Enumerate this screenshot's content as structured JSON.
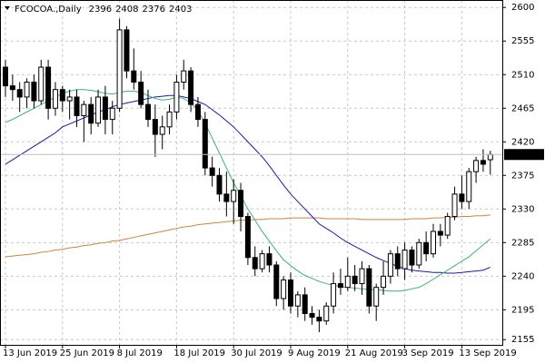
{
  "chart_data": {
    "type": "candlestick",
    "title": "FCOCOA.,Daily",
    "categories": [
      "13 Jun 2019",
      null,
      null,
      null,
      null,
      null,
      null,
      null,
      "25 Jun 2019",
      null,
      null,
      null,
      null,
      null,
      null,
      null,
      "8 Jul 2019",
      null,
      null,
      null,
      null,
      null,
      null,
      null,
      "18 Jul 2019",
      null,
      null,
      null,
      null,
      null,
      null,
      null,
      "30 Jul 2019",
      null,
      null,
      null,
      null,
      null,
      null,
      null,
      "9 Aug 2019",
      null,
      null,
      null,
      null,
      null,
      null,
      null,
      "21 Aug 2019",
      null,
      null,
      null,
      null,
      null,
      null,
      null,
      "3 Sep 2019",
      null,
      null,
      null,
      null,
      null,
      null,
      null,
      "13 Sep 2019",
      null,
      null,
      null,
      null
    ],
    "ohlc": [
      [
        2520,
        2530,
        2480,
        2495
      ],
      [
        2495,
        2510,
        2475,
        2490
      ],
      [
        2490,
        2500,
        2460,
        2480
      ],
      [
        2480,
        2505,
        2465,
        2500
      ],
      [
        2500,
        2510,
        2465,
        2475
      ],
      [
        2475,
        2530,
        2470,
        2520
      ],
      [
        2520,
        2530,
        2450,
        2465
      ],
      [
        2465,
        2500,
        2455,
        2490
      ],
      [
        2490,
        2495,
        2460,
        2475
      ],
      [
        2475,
        2490,
        2450,
        2480
      ],
      [
        2480,
        2490,
        2440,
        2455
      ],
      [
        2455,
        2475,
        2420,
        2470
      ],
      [
        2470,
        2480,
        2430,
        2445
      ],
      [
        2445,
        2490,
        2440,
        2480
      ],
      [
        2480,
        2495,
        2430,
        2450
      ],
      [
        2450,
        2475,
        2430,
        2465
      ],
      [
        2465,
        2585,
        2460,
        2570
      ],
      [
        2570,
        2575,
        2505,
        2515
      ],
      [
        2515,
        2545,
        2490,
        2500
      ],
      [
        2500,
        2515,
        2465,
        2470
      ],
      [
        2470,
        2490,
        2440,
        2450
      ],
      [
        2450,
        2470,
        2400,
        2430
      ],
      [
        2430,
        2455,
        2410,
        2440
      ],
      [
        2440,
        2470,
        2430,
        2460
      ],
      [
        2460,
        2510,
        2450,
        2500
      ],
      [
        2500,
        2530,
        2490,
        2515
      ],
      [
        2515,
        2520,
        2460,
        2470
      ],
      [
        2470,
        2480,
        2440,
        2450
      ],
      [
        2450,
        2460,
        2375,
        2385
      ],
      [
        2385,
        2400,
        2360,
        2375
      ],
      [
        2375,
        2385,
        2340,
        2350
      ],
      [
        2350,
        2380,
        2320,
        2340
      ],
      [
        2340,
        2370,
        2310,
        2355
      ],
      [
        2355,
        2365,
        2300,
        2320
      ],
      [
        2320,
        2325,
        2255,
        2265
      ],
      [
        2265,
        2280,
        2240,
        2250
      ],
      [
        2250,
        2275,
        2245,
        2270
      ],
      [
        2270,
        2280,
        2245,
        2255
      ],
      [
        2255,
        2260,
        2200,
        2210
      ],
      [
        2210,
        2240,
        2195,
        2235
      ],
      [
        2235,
        2245,
        2190,
        2200
      ],
      [
        2200,
        2220,
        2185,
        2215
      ],
      [
        2215,
        2225,
        2180,
        2190
      ],
      [
        2190,
        2200,
        2175,
        2185
      ],
      [
        2185,
        2195,
        2165,
        2180
      ],
      [
        2180,
        2205,
        2175,
        2200
      ],
      [
        2200,
        2245,
        2190,
        2230
      ],
      [
        2230,
        2250,
        2215,
        2225
      ],
      [
        2225,
        2265,
        2220,
        2240
      ],
      [
        2240,
        2255,
        2220,
        2230
      ],
      [
        2230,
        2260,
        2215,
        2250
      ],
      [
        2250,
        2255,
        2190,
        2200
      ],
      [
        2200,
        2230,
        2180,
        2225
      ],
      [
        2225,
        2260,
        2215,
        2240
      ],
      [
        2240,
        2275,
        2230,
        2270
      ],
      [
        2270,
        2280,
        2240,
        2250
      ],
      [
        2250,
        2285,
        2235,
        2275
      ],
      [
        2275,
        2280,
        2245,
        2255
      ],
      [
        2255,
        2290,
        2250,
        2285
      ],
      [
        2285,
        2300,
        2260,
        2270
      ],
      [
        2270,
        2310,
        2265,
        2300
      ],
      [
        2300,
        2310,
        2280,
        2295
      ],
      [
        2295,
        2325,
        2290,
        2320
      ],
      [
        2320,
        2360,
        2315,
        2350
      ],
      [
        2350,
        2375,
        2330,
        2340
      ],
      [
        2340,
        2385,
        2330,
        2380
      ],
      [
        2380,
        2400,
        2365,
        2395
      ],
      [
        2395,
        2410,
        2380,
        2390
      ],
      [
        2396,
        2408,
        2376,
        2403
      ]
    ],
    "lines": [
      {
        "color": "#cd853f",
        "values": [
          2266,
          2267,
          2268,
          2269,
          2270,
          2272,
          2273,
          2275,
          2276,
          2278,
          2279,
          2281,
          2282,
          2284,
          2285,
          2287,
          2288,
          2290,
          2292,
          2294,
          2296,
          2298,
          2300,
          2302,
          2304,
          2306,
          2307,
          2309,
          2310,
          2311,
          2312,
          2313,
          2314,
          2315,
          2315,
          2316,
          2316,
          2317,
          2317,
          2317,
          2318,
          2318,
          2318,
          2318,
          2318,
          2317,
          2317,
          2317,
          2317,
          2317,
          2316,
          2316,
          2316,
          2316,
          2316,
          2316,
          2316,
          2317,
          2317,
          2317,
          2318,
          2318,
          2319,
          2319,
          2320,
          2320,
          2321,
          2321,
          2322
        ]
      },
      {
        "color": "#1a1aa6",
        "values": [
          2390,
          2396,
          2402,
          2408,
          2414,
          2420,
          2426,
          2432,
          2440,
          2444,
          2448,
          2452,
          2456,
          2460,
          2463,
          2467,
          2470,
          2472,
          2474,
          2476,
          2478,
          2480,
          2481,
          2482,
          2482,
          2480,
          2478,
          2474,
          2470,
          2463,
          2456,
          2448,
          2440,
          2430,
          2420,
          2410,
          2400,
          2388,
          2375,
          2362,
          2350,
          2340,
          2330,
          2320,
          2310,
          2304,
          2298,
          2291,
          2285,
          2280,
          2275,
          2270,
          2265,
          2261,
          2257,
          2253,
          2250,
          2248,
          2247,
          2246,
          2245,
          2245,
          2244,
          2244,
          2245,
          2246,
          2247,
          2248,
          2252
        ]
      },
      {
        "color": "#3cb371",
        "values": [
          2446,
          2450,
          2455,
          2460,
          2465,
          2470,
          2475,
          2480,
          2485,
          2488,
          2490,
          2490,
          2489,
          2487,
          2485,
          2484,
          2486,
          2488,
          2488,
          2486,
          2482,
          2478,
          2476,
          2477,
          2480,
          2478,
          2472,
          2462,
          2445,
          2425,
          2405,
          2385,
          2365,
          2348,
          2330,
          2315,
          2300,
          2287,
          2274,
          2262,
          2254,
          2247,
          2241,
          2237,
          2233,
          2230,
          2228,
          2226,
          2225,
          2224,
          2223,
          2222,
          2222,
          2221,
          2220,
          2220,
          2221,
          2223,
          2225,
          2230,
          2236,
          2242,
          2248,
          2254,
          2260,
          2266,
          2274,
          2282,
          2290
        ]
      }
    ],
    "ylim": [
      2148,
      2610
    ],
    "yticks": [
      2155,
      2195,
      2240,
      2285,
      2330,
      2375,
      2420,
      2465,
      2510,
      2555,
      2600
    ],
    "grid": true
  }
}
